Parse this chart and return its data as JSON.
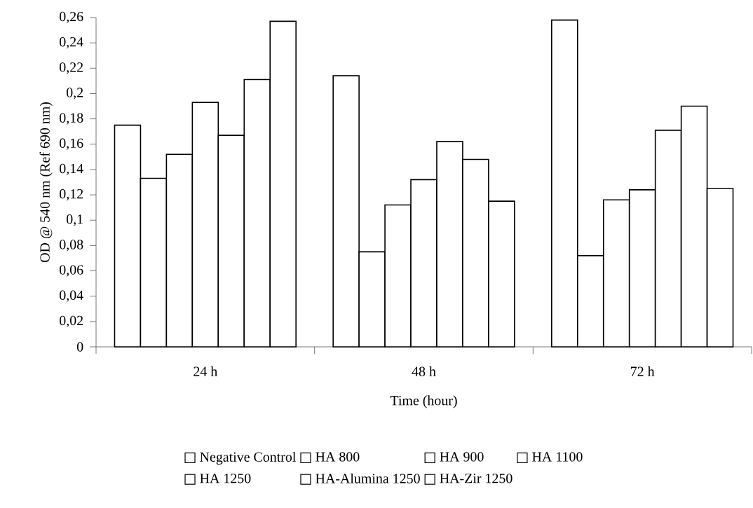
{
  "chart_data": {
    "type": "bar",
    "xlabel": "Time (hour)",
    "ylabel": "OD @ 540 nm (Ref 690 nm)",
    "categories": [
      "24 h",
      "48 h",
      "72 h"
    ],
    "series": [
      {
        "name": "Negative Control",
        "color": "#ffffff",
        "values": [
          0.175,
          0.214,
          0.258
        ]
      },
      {
        "name": "HA 800",
        "color": "#ffffff",
        "values": [
          0.133,
          0.075,
          0.072
        ]
      },
      {
        "name": "HA 900",
        "color": "#ffffff",
        "values": [
          0.152,
          0.112,
          0.116
        ]
      },
      {
        "name": "HA 1100",
        "color": "#ffffff",
        "values": [
          0.193,
          0.132,
          0.124
        ]
      },
      {
        "name": "HA 1250",
        "color": "#ffffff",
        "values": [
          0.167,
          0.162,
          0.171
        ]
      },
      {
        "name": "HA-Alumina 1250",
        "color": "#ffffff",
        "values": [
          0.211,
          0.148,
          0.19
        ]
      },
      {
        "name": "HA-Zir 1250",
        "color": "#ffffff",
        "values": [
          0.257,
          0.115,
          0.125
        ]
      }
    ],
    "ylim": [
      0,
      0.26
    ],
    "yticks": [
      {
        "value": 0,
        "label": "0"
      },
      {
        "value": 0.02,
        "label": "0,02"
      },
      {
        "value": 0.04,
        "label": "0,04"
      },
      {
        "value": 0.06,
        "label": "0,06"
      },
      {
        "value": 0.08,
        "label": "0,08"
      },
      {
        "value": 0.1,
        "label": "0,1"
      },
      {
        "value": 0.12,
        "label": "0,12"
      },
      {
        "value": 0.14,
        "label": "0,14"
      },
      {
        "value": 0.16,
        "label": "0,16"
      },
      {
        "value": 0.18,
        "label": "0,18"
      },
      {
        "value": 0.2,
        "label": "0,2"
      },
      {
        "value": 0.22,
        "label": "0,22"
      },
      {
        "value": 0.24,
        "label": "0,24"
      },
      {
        "value": 0.26,
        "label": "0,26"
      }
    ],
    "grid": false,
    "legend": "bottom"
  }
}
